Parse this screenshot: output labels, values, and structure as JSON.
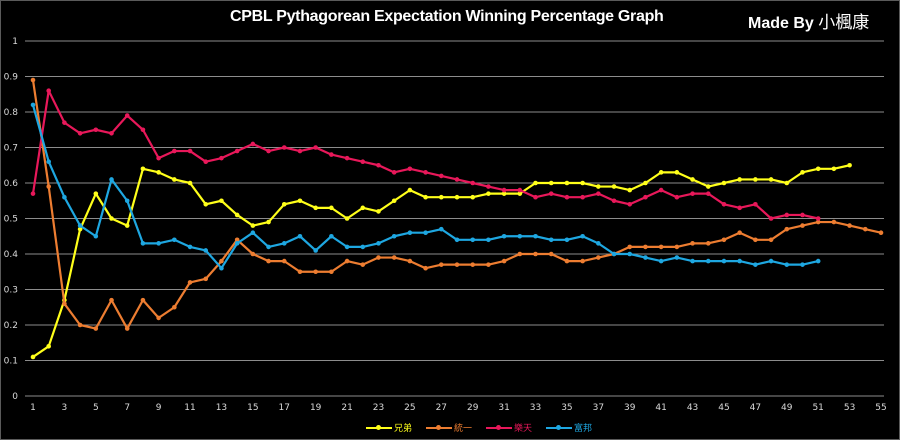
{
  "title": "CPBL Pythagorean Expectation Winning Percentage Graph",
  "credit": {
    "prefix": "Made By",
    "name": "小楓康"
  },
  "chart_data": {
    "type": "line",
    "title": "CPBL Pythagorean Expectation Winning Percentage Graph",
    "xlabel": "",
    "ylabel": "",
    "xlim": [
      1,
      55
    ],
    "ylim": [
      0,
      1
    ],
    "y_ticks": [
      "0",
      "0.1",
      "0.2",
      "0.3",
      "0.4",
      "0.5",
      "0.6",
      "0.7",
      "0.8",
      "0.9",
      "1"
    ],
    "x_ticks": [
      "1",
      "3",
      "5",
      "7",
      "9",
      "11",
      "13",
      "15",
      "17",
      "19",
      "21",
      "23",
      "25",
      "27",
      "29",
      "31",
      "33",
      "35",
      "37",
      "39",
      "41",
      "43",
      "45",
      "47",
      "49",
      "51",
      "53",
      "55"
    ],
    "grid": true,
    "legend_position": "bottom",
    "series": [
      {
        "name": "兄弟",
        "color": "#ffff1a",
        "values": [
          0.11,
          0.14,
          0.27,
          0.47,
          0.57,
          0.5,
          0.48,
          0.64,
          0.63,
          0.61,
          0.6,
          0.54,
          0.55,
          0.51,
          0.48,
          0.49,
          0.54,
          0.55,
          0.53,
          0.53,
          0.5,
          0.53,
          0.52,
          0.55,
          0.58,
          0.56,
          0.56,
          0.56,
          0.56,
          0.57,
          0.57,
          0.57,
          0.6,
          0.6,
          0.6,
          0.6,
          0.59,
          0.59,
          0.58,
          0.6,
          0.63,
          0.63,
          0.61,
          0.59,
          0.6,
          0.61,
          0.61,
          0.61,
          0.6,
          0.63,
          0.64,
          0.64,
          0.65
        ]
      },
      {
        "name": "統一",
        "color": "#ed7d31",
        "values": [
          0.89,
          0.59,
          0.26,
          0.2,
          0.19,
          0.27,
          0.19,
          0.27,
          0.22,
          0.25,
          0.32,
          0.33,
          0.38,
          0.44,
          0.4,
          0.38,
          0.38,
          0.35,
          0.35,
          0.35,
          0.38,
          0.37,
          0.39,
          0.39,
          0.38,
          0.36,
          0.37,
          0.37,
          0.37,
          0.37,
          0.38,
          0.4,
          0.4,
          0.4,
          0.38,
          0.38,
          0.39,
          0.4,
          0.42,
          0.42,
          0.42,
          0.42,
          0.43,
          0.43,
          0.44,
          0.46,
          0.44,
          0.44,
          0.47,
          0.48,
          0.49,
          0.49,
          0.48,
          0.47,
          0.46
        ]
      },
      {
        "name": "樂天",
        "color": "#e8185a",
        "values": [
          0.57,
          0.86,
          0.77,
          0.74,
          0.75,
          0.74,
          0.79,
          0.75,
          0.67,
          0.69,
          0.69,
          0.66,
          0.67,
          0.69,
          0.71,
          0.69,
          0.7,
          0.69,
          0.7,
          0.68,
          0.67,
          0.66,
          0.65,
          0.63,
          0.64,
          0.63,
          0.62,
          0.61,
          0.6,
          0.59,
          0.58,
          0.58,
          0.56,
          0.57,
          0.56,
          0.56,
          0.57,
          0.55,
          0.54,
          0.56,
          0.58,
          0.56,
          0.57,
          0.57,
          0.54,
          0.53,
          0.54,
          0.5,
          0.51,
          0.51,
          0.5
        ]
      },
      {
        "name": "富邦",
        "color": "#1ea7e1",
        "values": [
          0.82,
          0.66,
          0.56,
          0.48,
          0.45,
          0.61,
          0.55,
          0.43,
          0.43,
          0.44,
          0.42,
          0.41,
          0.36,
          0.43,
          0.46,
          0.42,
          0.43,
          0.45,
          0.41,
          0.45,
          0.42,
          0.42,
          0.43,
          0.45,
          0.46,
          0.46,
          0.47,
          0.44,
          0.44,
          0.44,
          0.45,
          0.45,
          0.45,
          0.44,
          0.44,
          0.45,
          0.43,
          0.4,
          0.4,
          0.39,
          0.38,
          0.39,
          0.38,
          0.38,
          0.38,
          0.38,
          0.37,
          0.38,
          0.37,
          0.37,
          0.38
        ]
      }
    ]
  }
}
